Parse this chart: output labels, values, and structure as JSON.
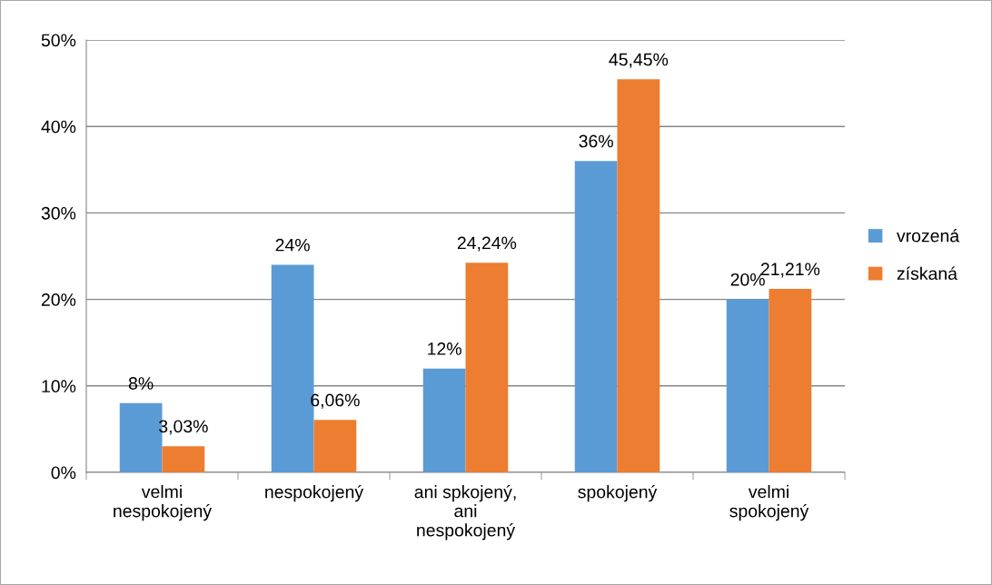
{
  "chart_data": {
    "type": "bar",
    "categories": [
      "velmi\nnespokojený",
      "nespokojený",
      "ani spkojený,\nani\nnespokojený",
      "spokojený",
      "velmi\nspokojený"
    ],
    "series": [
      {
        "name": "vrozená",
        "color": "#5b9bd5",
        "values": [
          8,
          24,
          12,
          36,
          20
        ],
        "value_labels": [
          "8%",
          "24%",
          "12%",
          "36%",
          "20%"
        ]
      },
      {
        "name": "získaná",
        "color": "#ed7d31",
        "values": [
          3.03,
          6.06,
          24.24,
          45.45,
          21.21
        ],
        "value_labels": [
          "3,03%",
          "6,06%",
          "24,24%",
          "45,45%",
          "21,21%"
        ]
      }
    ],
    "ylim": [
      0,
      50
    ],
    "yticks": [
      {
        "value": 0,
        "label": "0%"
      },
      {
        "value": 10,
        "label": "10%"
      },
      {
        "value": 20,
        "label": "20%"
      },
      {
        "value": 30,
        "label": "30%"
      },
      {
        "value": 40,
        "label": "40%"
      },
      {
        "value": 50,
        "label": "50%"
      }
    ],
    "grid": "y",
    "legend": "right"
  }
}
